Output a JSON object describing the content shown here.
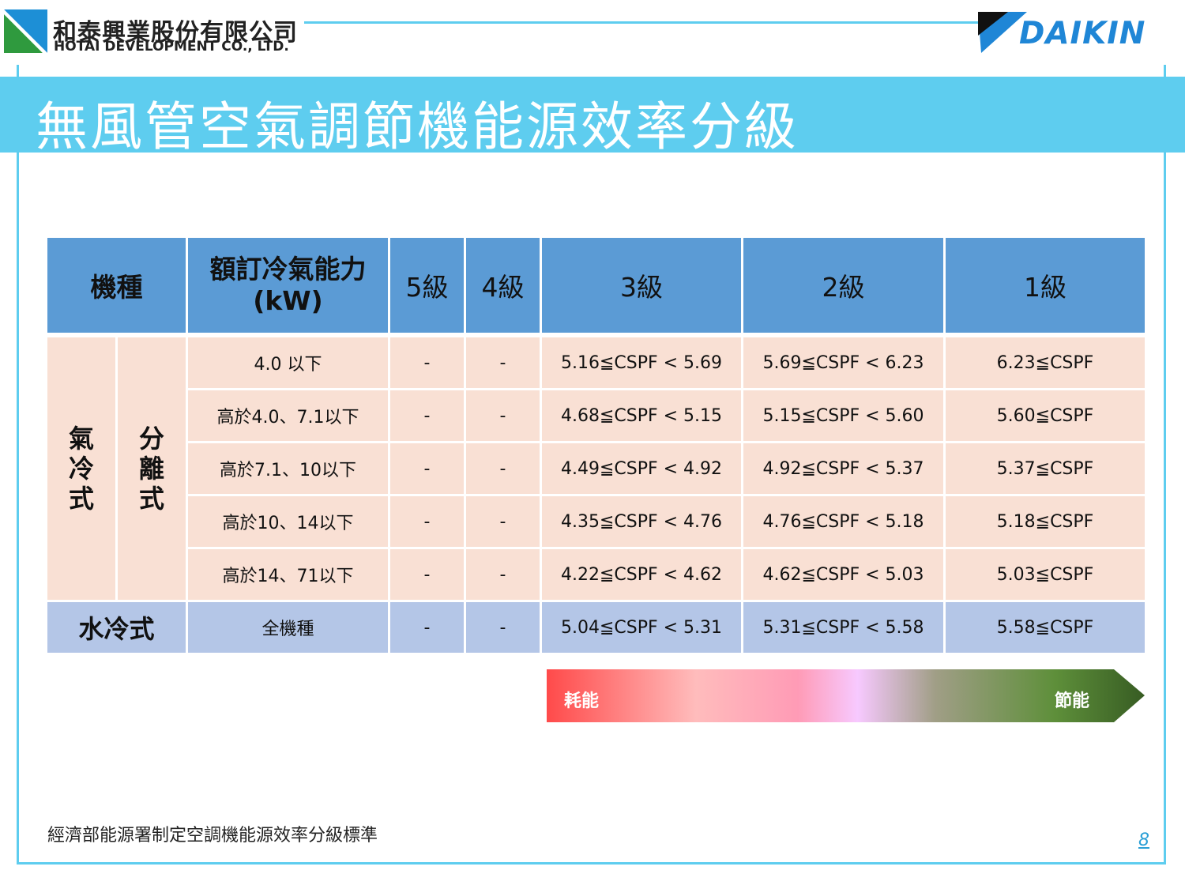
{
  "header": {
    "company_cn": "和泰興業股份有限公司",
    "company_en": "HOTAI DEVELOPMENT CO., LTD.",
    "brand": "DAIKIN",
    "title": "無風管空氣調節機能源效率分級"
  },
  "table": {
    "headers": {
      "type": "機種",
      "capacity": "額訂冷氣能力 (kW)",
      "grade5": "5級",
      "grade4": "4級",
      "grade3": "3級",
      "grade2": "2級",
      "grade1": "1級"
    },
    "group_air": "氣冷式",
    "group_split": "分離式",
    "rows": [
      {
        "capacity": "4.0 以下",
        "g5": "-",
        "g4": "-",
        "g3": "5.16≦CSPF < 5.69",
        "g2": "5.69≦CSPF < 6.23",
        "g1": "6.23≦CSPF"
      },
      {
        "capacity": "高於4.0、7.1以下",
        "g5": "-",
        "g4": "-",
        "g3": "4.68≦CSPF < 5.15",
        "g2": "5.15≦CSPF < 5.60",
        "g1": "5.60≦CSPF"
      },
      {
        "capacity": "高於7.1、10以下",
        "g5": "-",
        "g4": "-",
        "g3": "4.49≦CSPF < 4.92",
        "g2": "4.92≦CSPF < 5.37",
        "g1": "5.37≦CSPF"
      },
      {
        "capacity": "高於10、14以下",
        "g5": "-",
        "g4": "-",
        "g3": "4.35≦CSPF < 4.76",
        "g2": "4.76≦CSPF < 5.18",
        "g1": "5.18≦CSPF"
      },
      {
        "capacity": "高於14、71以下",
        "g5": "-",
        "g4": "-",
        "g3": "4.22≦CSPF < 4.62",
        "g2": "4.62≦CSPF < 5.03",
        "g1": "5.03≦CSPF"
      }
    ],
    "water": {
      "type": "水冷式",
      "capacity": "全機種",
      "g5": "-",
      "g4": "-",
      "g3": "5.04≦CSPF < 5.31",
      "g2": "5.31≦CSPF < 5.58",
      "g1": "5.58≦CSPF"
    }
  },
  "energy_scale": {
    "left_label": "耗能",
    "right_label": "節能"
  },
  "footer": {
    "note": "經濟部能源署制定空調機能源效率分級標準",
    "page": "8"
  }
}
